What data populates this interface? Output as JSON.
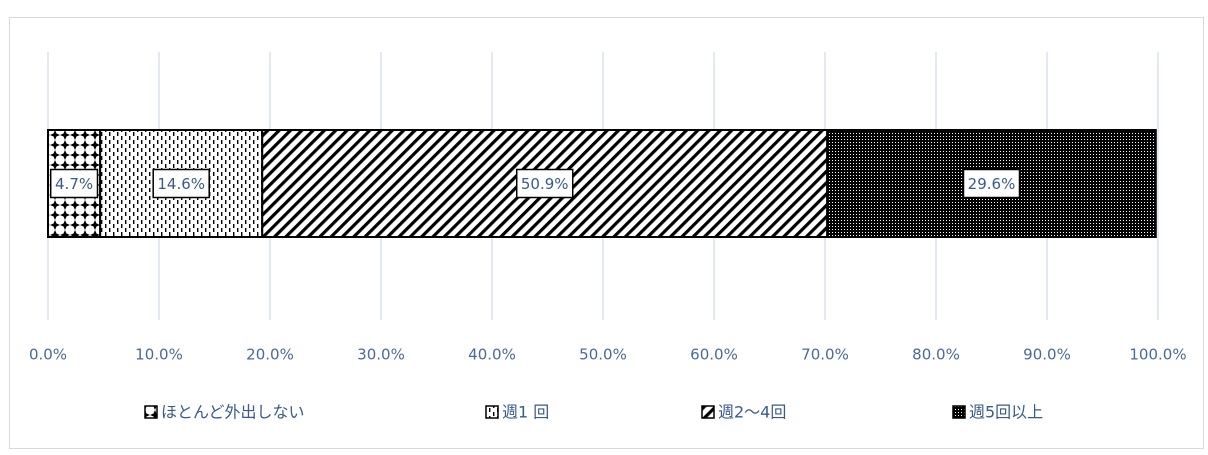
{
  "chart_data": {
    "type": "bar",
    "orientation": "horizontal-stacked-100",
    "categories": [
      ""
    ],
    "series": [
      {
        "name": "ほとんど外出しない",
        "values": [
          4.7
        ],
        "label": "4.7%",
        "pattern": "crosses"
      },
      {
        "name": "週1回",
        "values": [
          14.6
        ],
        "label": "14.6%",
        "pattern": "dashed-vertical"
      },
      {
        "name": "週2～4回",
        "values": [
          50.9
        ],
        "label": "50.9%",
        "pattern": "diagonal"
      },
      {
        "name": "週5回以上",
        "values": [
          29.6
        ],
        "label": "29.6%",
        "pattern": "dense-dots"
      }
    ],
    "xlim": [
      0,
      100
    ],
    "xticks": [
      "0.0%",
      "10.0%",
      "20.0%",
      "30.0%",
      "40.0%",
      "50.0%",
      "60.0%",
      "70.0%",
      "80.0%",
      "90.0%",
      "100.0%"
    ],
    "grid": true,
    "legend_position": "bottom",
    "title": "",
    "xlabel": "",
    "ylabel": "",
    "colors": {
      "tick_text": "#4a6a9a",
      "grid": "#d9e2f0",
      "label_text": "#3a5a8c"
    }
  },
  "legend": {
    "items": [
      "ほとんど外出しない",
      "週1回",
      "週2～4回",
      "週5回以上"
    ],
    "display": [
      "ほとんど外出しない",
      "週1 回",
      "週2～4回",
      "週5回以上"
    ]
  }
}
